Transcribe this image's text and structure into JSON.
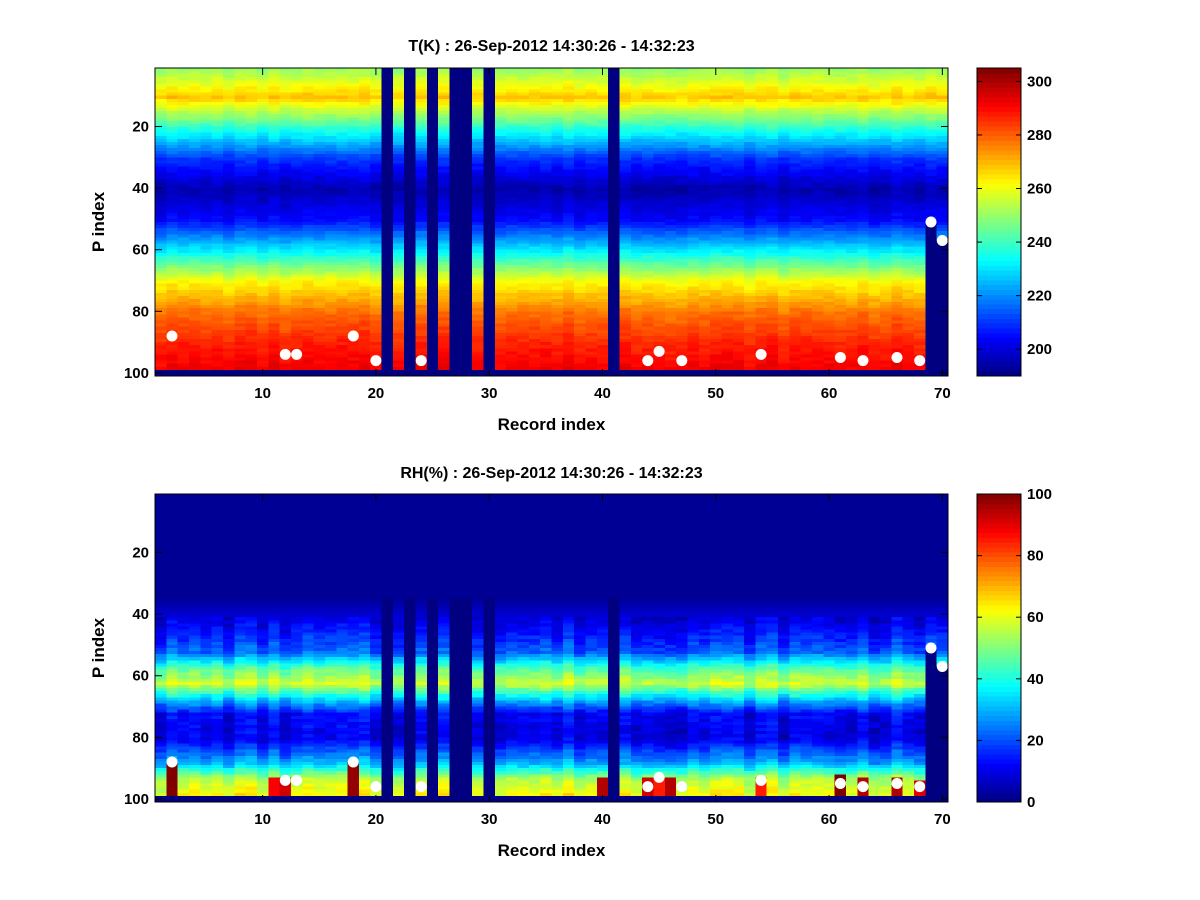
{
  "chart_data": [
    {
      "type": "heatmap",
      "title": "T(K) : 26-Sep-2012 14:30:26 - 14:32:23",
      "xlabel": "Record index",
      "ylabel": "P index",
      "x_ticks": [
        10,
        20,
        30,
        40,
        50,
        60,
        70
      ],
      "y_ticks": [
        20,
        40,
        60,
        80,
        100
      ],
      "xlim": [
        0.5,
        70.5
      ],
      "ylim": [
        1,
        101
      ],
      "y_reversed": true,
      "colormap": "jet",
      "colorbar": {
        "min": 190,
        "max": 305,
        "ticks": [
          200,
          220,
          240,
          260,
          280,
          300
        ]
      },
      "profile": {
        "p_index": [
          1,
          10,
          20,
          30,
          40,
          50,
          60,
          70,
          80,
          90,
          98
        ],
        "value": [
          250,
          268,
          238,
          210,
          195,
          205,
          232,
          262,
          278,
          287,
          292
        ]
      },
      "missing_records": [
        21,
        23,
        25,
        27,
        28,
        30,
        41
      ],
      "bottom_rows_missing": 2,
      "truncated_records": [
        {
          "record": 69,
          "top_p": 51
        },
        {
          "record": 70,
          "top_p": 57
        }
      ],
      "markers": [
        {
          "x": 2,
          "y": 88
        },
        {
          "x": 12,
          "y": 94
        },
        {
          "x": 13,
          "y": 94
        },
        {
          "x": 18,
          "y": 88
        },
        {
          "x": 20,
          "y": 96
        },
        {
          "x": 24,
          "y": 96
        },
        {
          "x": 44,
          "y": 96
        },
        {
          "x": 45,
          "y": 93
        },
        {
          "x": 47,
          "y": 96
        },
        {
          "x": 54,
          "y": 94
        },
        {
          "x": 61,
          "y": 95
        },
        {
          "x": 63,
          "y": 96
        },
        {
          "x": 66,
          "y": 95
        },
        {
          "x": 68,
          "y": 96
        },
        {
          "x": 69,
          "y": 51
        },
        {
          "x": 70,
          "y": 57
        }
      ]
    },
    {
      "type": "heatmap",
      "title": "RH(%) : 26-Sep-2012 14:30:26 - 14:32:23",
      "xlabel": "Record index",
      "ylabel": "P index",
      "x_ticks": [
        10,
        20,
        30,
        40,
        50,
        60,
        70
      ],
      "y_ticks": [
        20,
        40,
        60,
        80,
        100
      ],
      "xlim": [
        0.5,
        70.5
      ],
      "ylim": [
        1,
        101
      ],
      "y_reversed": true,
      "colormap": "jet",
      "colorbar": {
        "min": 0,
        "max": 100,
        "ticks": [
          0,
          20,
          40,
          60,
          80,
          100
        ]
      },
      "profile": {
        "p_index": [
          1,
          34,
          44,
          52,
          57,
          62,
          68,
          72,
          80,
          88,
          93,
          98
        ],
        "value": [
          2,
          2,
          12,
          22,
          45,
          58,
          28,
          12,
          10,
          30,
          55,
          62
        ]
      },
      "missing_records": [
        21,
        23,
        25,
        27,
        28,
        30,
        41
      ],
      "bottom_rows_missing": 2,
      "truncated_records": [
        {
          "record": 69,
          "top_p": 51
        },
        {
          "record": 70,
          "top_p": 57
        }
      ],
      "markers": [
        {
          "x": 2,
          "y": 88
        },
        {
          "x": 12,
          "y": 94
        },
        {
          "x": 13,
          "y": 94
        },
        {
          "x": 18,
          "y": 88
        },
        {
          "x": 20,
          "y": 96
        },
        {
          "x": 24,
          "y": 96
        },
        {
          "x": 44,
          "y": 96
        },
        {
          "x": 45,
          "y": 93
        },
        {
          "x": 47,
          "y": 96
        },
        {
          "x": 54,
          "y": 94
        },
        {
          "x": 61,
          "y": 95
        },
        {
          "x": 63,
          "y": 96
        },
        {
          "x": 66,
          "y": 95
        },
        {
          "x": 68,
          "y": 96
        },
        {
          "x": 69,
          "y": 51
        },
        {
          "x": 70,
          "y": 57
        }
      ],
      "high_humidity_bars": [
        {
          "record": 2,
          "top_p": 88,
          "value": 100
        },
        {
          "record": 11,
          "top_p": 93,
          "value": 88
        },
        {
          "record": 12,
          "top_p": 93,
          "value": 92
        },
        {
          "record": 18,
          "top_p": 88,
          "value": 98
        },
        {
          "record": 40,
          "top_p": 93,
          "value": 95
        },
        {
          "record": 44,
          "top_p": 93,
          "value": 92
        },
        {
          "record": 45,
          "top_p": 93,
          "value": 85
        },
        {
          "record": 46,
          "top_p": 93,
          "value": 95
        },
        {
          "record": 54,
          "top_p": 93,
          "value": 85
        },
        {
          "record": 61,
          "top_p": 92,
          "value": 100
        },
        {
          "record": 63,
          "top_p": 93,
          "value": 95
        },
        {
          "record": 66,
          "top_p": 93,
          "value": 95
        },
        {
          "record": 68,
          "top_p": 94,
          "value": 90
        }
      ]
    }
  ]
}
